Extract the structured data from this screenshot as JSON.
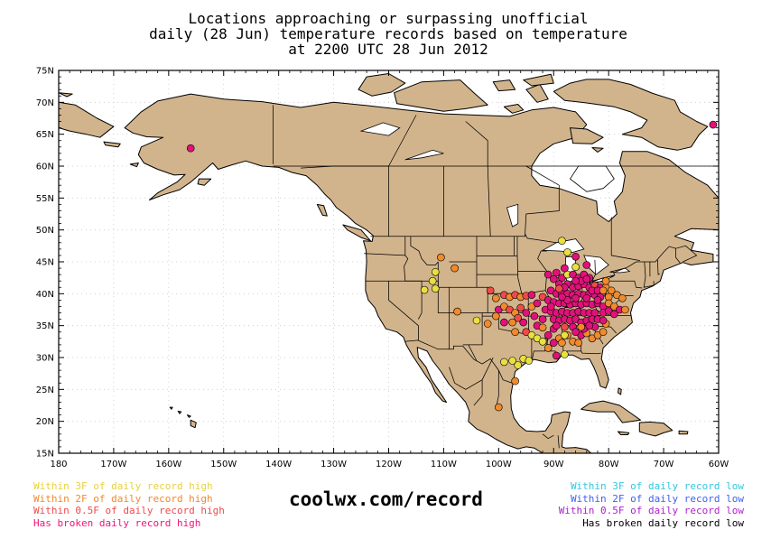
{
  "title": {
    "line1": "Locations approaching or surpassing unofficial",
    "line2": "daily (28 Jun) temperature records based on temperature",
    "line3": "at 2200 UTC 28 Jun 2012"
  },
  "axes": {
    "lat_labels": [
      "75N",
      "70N",
      "65N",
      "60N",
      "55N",
      "50N",
      "45N",
      "40N",
      "35N",
      "30N",
      "25N",
      "20N",
      "15N"
    ],
    "lat_values": [
      75,
      70,
      65,
      60,
      55,
      50,
      45,
      40,
      35,
      30,
      25,
      20,
      15
    ],
    "lon_labels": [
      "180",
      "170W",
      "160W",
      "150W",
      "140W",
      "130W",
      "120W",
      "110W",
      "100W",
      "90W",
      "80W",
      "70W",
      "60W"
    ],
    "lon_values": [
      -180,
      -170,
      -160,
      -150,
      -140,
      -130,
      -120,
      -110,
      -100,
      -90,
      -80,
      -70,
      -60
    ],
    "lon_range": [
      -180,
      -60
    ],
    "lat_range": [
      15,
      75
    ]
  },
  "colors": {
    "land": "#d2b48c",
    "water": "#ffffff",
    "yellow": "#e8e040",
    "orange": "#f08a2c",
    "red": "#f04a4a",
    "magenta": "#e0127a",
    "cyan": "#30c8e0",
    "blue": "#4060f0",
    "purple": "#b020d0",
    "black": "#000000"
  },
  "legend_left": [
    {
      "text": "Within 3F of daily record high",
      "color": "#e8d040"
    },
    {
      "text": "Within 2F of daily record high",
      "color": "#f08a2c"
    },
    {
      "text": "Within 0.5F of daily record high",
      "color": "#f04a4a"
    },
    {
      "text": "Has broken daily record high",
      "color": "#f0127a"
    }
  ],
  "legend_right": [
    {
      "text": "Within 3F of daily record low",
      "color": "#30c8e0"
    },
    {
      "text": "Within 2F of daily record low",
      "color": "#4060f0"
    },
    {
      "text": "Within 0.5F of daily record low",
      "color": "#b020d0"
    },
    {
      "text": "Has broken daily record low",
      "color": "#000000"
    }
  ],
  "site": "coolwx.com/record",
  "stations": [
    {
      "lon": -156.0,
      "lat": 62.8,
      "cat": "magenta"
    },
    {
      "lon": -61.0,
      "lat": 66.5,
      "cat": "magenta"
    },
    {
      "lon": -88.5,
      "lat": 48.3,
      "cat": "yellow"
    },
    {
      "lon": -87.5,
      "lat": 46.5,
      "cat": "yellow"
    },
    {
      "lon": -86.0,
      "lat": 45.8,
      "cat": "magenta"
    },
    {
      "lon": -110.5,
      "lat": 45.7,
      "cat": "orange"
    },
    {
      "lon": -108.0,
      "lat": 44.0,
      "cat": "orange"
    },
    {
      "lon": -111.5,
      "lat": 43.4,
      "cat": "yellow"
    },
    {
      "lon": -112.0,
      "lat": 42.0,
      "cat": "yellow"
    },
    {
      "lon": -113.5,
      "lat": 40.6,
      "cat": "yellow"
    },
    {
      "lon": -111.5,
      "lat": 40.8,
      "cat": "yellow"
    },
    {
      "lon": -107.5,
      "lat": 37.2,
      "cat": "orange"
    },
    {
      "lon": -104.0,
      "lat": 35.8,
      "cat": "yellow"
    },
    {
      "lon": -101.5,
      "lat": 40.5,
      "cat": "red"
    },
    {
      "lon": -100.5,
      "lat": 39.3,
      "cat": "orange"
    },
    {
      "lon": -99.0,
      "lat": 39.8,
      "cat": "red"
    },
    {
      "lon": -98.0,
      "lat": 39.5,
      "cat": "orange"
    },
    {
      "lon": -97.0,
      "lat": 39.8,
      "cat": "red"
    },
    {
      "lon": -96.0,
      "lat": 39.5,
      "cat": "orange"
    },
    {
      "lon": -95.0,
      "lat": 39.7,
      "cat": "red"
    },
    {
      "lon": -94.0,
      "lat": 39.8,
      "cat": "magenta"
    },
    {
      "lon": -100.0,
      "lat": 37.5,
      "cat": "magenta"
    },
    {
      "lon": -99.0,
      "lat": 38.0,
      "cat": "orange"
    },
    {
      "lon": -98.0,
      "lat": 37.5,
      "cat": "red"
    },
    {
      "lon": -97.0,
      "lat": 37.0,
      "cat": "orange"
    },
    {
      "lon": -96.0,
      "lat": 37.8,
      "cat": "red"
    },
    {
      "lon": -95.0,
      "lat": 37.0,
      "cat": "magenta"
    },
    {
      "lon": -94.0,
      "lat": 38.0,
      "cat": "orange"
    },
    {
      "lon": -93.0,
      "lat": 38.5,
      "cat": "magenta"
    },
    {
      "lon": -100.5,
      "lat": 36.5,
      "cat": "orange"
    },
    {
      "lon": -99.0,
      "lat": 35.5,
      "cat": "magenta"
    },
    {
      "lon": -97.5,
      "lat": 35.5,
      "cat": "orange"
    },
    {
      "lon": -96.5,
      "lat": 36.2,
      "cat": "red"
    },
    {
      "lon": -95.5,
      "lat": 35.5,
      "cat": "magenta"
    },
    {
      "lon": -97.0,
      "lat": 34.0,
      "cat": "orange"
    },
    {
      "lon": -95.0,
      "lat": 34.0,
      "cat": "red"
    },
    {
      "lon": -102.0,
      "lat": 35.3,
      "cat": "orange"
    },
    {
      "lon": -93.0,
      "lat": 35.0,
      "cat": "magenta"
    },
    {
      "lon": -92.0,
      "lat": 34.7,
      "cat": "orange"
    },
    {
      "lon": -94.0,
      "lat": 33.5,
      "cat": "yellow"
    },
    {
      "lon": -93.0,
      "lat": 33.0,
      "cat": "yellow"
    },
    {
      "lon": -92.0,
      "lat": 32.5,
      "cat": "yellow"
    },
    {
      "lon": -91.0,
      "lat": 33.5,
      "cat": "magenta"
    },
    {
      "lon": -90.0,
      "lat": 34.5,
      "cat": "magenta"
    },
    {
      "lon": -89.0,
      "lat": 33.0,
      "cat": "orange"
    },
    {
      "lon": -88.5,
      "lat": 32.3,
      "cat": "orange"
    },
    {
      "lon": -87.5,
      "lat": 33.5,
      "cat": "orange"
    },
    {
      "lon": -86.5,
      "lat": 32.5,
      "cat": "orange"
    },
    {
      "lon": -85.0,
      "lat": 33.5,
      "cat": "magenta"
    },
    {
      "lon": -84.0,
      "lat": 33.8,
      "cat": "orange"
    },
    {
      "lon": -83.0,
      "lat": 33.0,
      "cat": "orange"
    },
    {
      "lon": -82.0,
      "lat": 33.5,
      "cat": "orange"
    },
    {
      "lon": -81.0,
      "lat": 34.0,
      "cat": "orange"
    },
    {
      "lon": -85.5,
      "lat": 32.3,
      "cat": "orange"
    },
    {
      "lon": -84.5,
      "lat": 34.5,
      "cat": "magenta"
    },
    {
      "lon": -82.5,
      "lat": 34.8,
      "cat": "magenta"
    },
    {
      "lon": -80.5,
      "lat": 35.3,
      "cat": "orange"
    },
    {
      "lon": -97.5,
      "lat": 29.5,
      "cat": "yellow"
    },
    {
      "lon": -96.5,
      "lat": 28.8,
      "cat": "yellow"
    },
    {
      "lon": -95.5,
      "lat": 29.8,
      "cat": "yellow"
    },
    {
      "lon": -94.5,
      "lat": 29.5,
      "cat": "yellow"
    },
    {
      "lon": -99.0,
      "lat": 29.3,
      "cat": "yellow"
    },
    {
      "lon": -97.0,
      "lat": 26.3,
      "cat": "orange"
    },
    {
      "lon": -100.0,
      "lat": 22.2,
      "cat": "orange"
    },
    {
      "lon": -89.5,
      "lat": 30.3,
      "cat": "magenta"
    },
    {
      "lon": -88.0,
      "lat": 30.5,
      "cat": "yellow"
    },
    {
      "lon": -91.0,
      "lat": 43.0,
      "cat": "magenta"
    },
    {
      "lon": -90.0,
      "lat": 42.3,
      "cat": "magenta"
    },
    {
      "lon": -88.5,
      "lat": 42.5,
      "cat": "magenta"
    },
    {
      "lon": -87.5,
      "lat": 43.0,
      "cat": "yellow"
    },
    {
      "lon": -86.5,
      "lat": 43.0,
      "cat": "magenta"
    },
    {
      "lon": -85.5,
      "lat": 42.5,
      "cat": "magenta"
    },
    {
      "lon": -84.5,
      "lat": 43.0,
      "cat": "magenta"
    },
    {
      "lon": -83.5,
      "lat": 42.5,
      "cat": "magenta"
    },
    {
      "lon": -89.0,
      "lat": 41.5,
      "cat": "magenta"
    },
    {
      "lon": -87.5,
      "lat": 41.5,
      "cat": "magenta"
    },
    {
      "lon": -86.5,
      "lat": 41.0,
      "cat": "magenta"
    },
    {
      "lon": -85.5,
      "lat": 41.2,
      "cat": "magenta"
    },
    {
      "lon": -84.5,
      "lat": 41.5,
      "cat": "magenta"
    },
    {
      "lon": -83.5,
      "lat": 41.0,
      "cat": "magenta"
    },
    {
      "lon": -82.5,
      "lat": 41.3,
      "cat": "red"
    },
    {
      "lon": -81.5,
      "lat": 41.0,
      "cat": "magenta"
    },
    {
      "lon": -80.5,
      "lat": 41.0,
      "cat": "orange"
    },
    {
      "lon": -79.5,
      "lat": 40.5,
      "cat": "orange"
    },
    {
      "lon": -78.5,
      "lat": 39.8,
      "cat": "orange"
    },
    {
      "lon": -77.5,
      "lat": 39.3,
      "cat": "orange"
    },
    {
      "lon": -80.0,
      "lat": 39.5,
      "cat": "orange"
    },
    {
      "lon": -80.5,
      "lat": 42.0,
      "cat": "orange"
    },
    {
      "lon": -90.5,
      "lat": 40.5,
      "cat": "magenta"
    },
    {
      "lon": -89.5,
      "lat": 40.0,
      "cat": "magenta"
    },
    {
      "lon": -88.5,
      "lat": 40.0,
      "cat": "magenta"
    },
    {
      "lon": -87.5,
      "lat": 40.0,
      "cat": "magenta"
    },
    {
      "lon": -86.5,
      "lat": 39.8,
      "cat": "magenta"
    },
    {
      "lon": -85.5,
      "lat": 40.0,
      "cat": "magenta"
    },
    {
      "lon": -84.5,
      "lat": 39.8,
      "cat": "magenta"
    },
    {
      "lon": -83.5,
      "lat": 40.0,
      "cat": "magenta"
    },
    {
      "lon": -82.5,
      "lat": 39.8,
      "cat": "magenta"
    },
    {
      "lon": -81.5,
      "lat": 39.5,
      "cat": "magenta"
    },
    {
      "lon": -92.0,
      "lat": 39.5,
      "cat": "red"
    },
    {
      "lon": -91.0,
      "lat": 39.0,
      "cat": "magenta"
    },
    {
      "lon": -90.0,
      "lat": 38.7,
      "cat": "magenta"
    },
    {
      "lon": -89.0,
      "lat": 38.5,
      "cat": "magenta"
    },
    {
      "lon": -88.0,
      "lat": 38.5,
      "cat": "magenta"
    },
    {
      "lon": -87.0,
      "lat": 38.3,
      "cat": "magenta"
    },
    {
      "lon": -86.0,
      "lat": 38.5,
      "cat": "magenta"
    },
    {
      "lon": -85.0,
      "lat": 38.3,
      "cat": "magenta"
    },
    {
      "lon": -84.0,
      "lat": 38.5,
      "cat": "magenta"
    },
    {
      "lon": -83.0,
      "lat": 38.3,
      "cat": "magenta"
    },
    {
      "lon": -82.0,
      "lat": 38.5,
      "cat": "magenta"
    },
    {
      "lon": -81.0,
      "lat": 38.0,
      "cat": "magenta"
    },
    {
      "lon": -80.0,
      "lat": 38.5,
      "cat": "orange"
    },
    {
      "lon": -79.0,
      "lat": 38.0,
      "cat": "orange"
    },
    {
      "lon": -78.0,
      "lat": 37.5,
      "cat": "magenta"
    },
    {
      "lon": -77.0,
      "lat": 37.5,
      "cat": "orange"
    },
    {
      "lon": -91.5,
      "lat": 37.5,
      "cat": "magenta"
    },
    {
      "lon": -90.5,
      "lat": 37.2,
      "cat": "magenta"
    },
    {
      "lon": -89.5,
      "lat": 37.0,
      "cat": "magenta"
    },
    {
      "lon": -88.5,
      "lat": 37.2,
      "cat": "magenta"
    },
    {
      "lon": -87.5,
      "lat": 37.0,
      "cat": "magenta"
    },
    {
      "lon": -86.5,
      "lat": 37.0,
      "cat": "magenta"
    },
    {
      "lon": -85.5,
      "lat": 37.2,
      "cat": "magenta"
    },
    {
      "lon": -84.5,
      "lat": 37.0,
      "cat": "magenta"
    },
    {
      "lon": -83.5,
      "lat": 37.0,
      "cat": "magenta"
    },
    {
      "lon": -82.5,
      "lat": 37.0,
      "cat": "magenta"
    },
    {
      "lon": -81.0,
      "lat": 37.0,
      "cat": "magenta"
    },
    {
      "lon": -80.0,
      "lat": 37.3,
      "cat": "magenta"
    },
    {
      "lon": -79.0,
      "lat": 36.8,
      "cat": "magenta"
    },
    {
      "lon": -90.0,
      "lat": 36.0,
      "cat": "magenta"
    },
    {
      "lon": -89.0,
      "lat": 35.8,
      "cat": "magenta"
    },
    {
      "lon": -88.0,
      "lat": 36.0,
      "cat": "magenta"
    },
    {
      "lon": -87.0,
      "lat": 35.8,
      "cat": "magenta"
    },
    {
      "lon": -86.0,
      "lat": 36.0,
      "cat": "magenta"
    },
    {
      "lon": -85.0,
      "lat": 35.5,
      "cat": "magenta"
    },
    {
      "lon": -84.0,
      "lat": 35.8,
      "cat": "magenta"
    },
    {
      "lon": -83.0,
      "lat": 36.0,
      "cat": "magenta"
    },
    {
      "lon": -82.0,
      "lat": 36.0,
      "cat": "magenta"
    },
    {
      "lon": -81.0,
      "lat": 35.8,
      "cat": "magenta"
    },
    {
      "lon": -89.5,
      "lat": 35.0,
      "cat": "magenta"
    },
    {
      "lon": -88.0,
      "lat": 34.8,
      "cat": "red"
    },
    {
      "lon": -86.5,
      "lat": 34.8,
      "cat": "magenta"
    },
    {
      "lon": -85.0,
      "lat": 34.8,
      "cat": "orange"
    },
    {
      "lon": -83.5,
      "lat": 35.0,
      "cat": "magenta"
    },
    {
      "lon": -87.5,
      "lat": 39.0,
      "cat": "magenta"
    },
    {
      "lon": -86.0,
      "lat": 39.3,
      "cat": "magenta"
    },
    {
      "lon": -84.0,
      "lat": 39.3,
      "cat": "magenta"
    },
    {
      "lon": -82.0,
      "lat": 39.0,
      "cat": "magenta"
    },
    {
      "lon": -88.5,
      "lat": 39.5,
      "cat": "magenta"
    },
    {
      "lon": -90.5,
      "lat": 38.0,
      "cat": "magenta"
    },
    {
      "lon": -85.0,
      "lat": 42.0,
      "cat": "magenta"
    },
    {
      "lon": -86.0,
      "lat": 42.0,
      "cat": "magenta"
    },
    {
      "lon": -84.0,
      "lat": 42.3,
      "cat": "magenta"
    },
    {
      "lon": -83.0,
      "lat": 40.5,
      "cat": "magenta"
    },
    {
      "lon": -82.0,
      "lat": 40.5,
      "cat": "magenta"
    },
    {
      "lon": -81.0,
      "lat": 40.5,
      "cat": "orange"
    },
    {
      "lon": -88.0,
      "lat": 41.0,
      "cat": "magenta"
    },
    {
      "lon": -89.0,
      "lat": 40.8,
      "cat": "red"
    },
    {
      "lon": -89.5,
      "lat": 43.3,
      "cat": "magenta"
    },
    {
      "lon": -88.0,
      "lat": 44.0,
      "cat": "magenta"
    },
    {
      "lon": -86.0,
      "lat": 44.2,
      "cat": "yellow"
    },
    {
      "lon": -84.0,
      "lat": 44.5,
      "cat": "magenta"
    },
    {
      "lon": -92.0,
      "lat": 36.0,
      "cat": "magenta"
    },
    {
      "lon": -93.5,
      "lat": 36.5,
      "cat": "magenta"
    },
    {
      "lon": -86.0,
      "lat": 34.0,
      "cat": "magenta"
    },
    {
      "lon": -88.0,
      "lat": 33.5,
      "cat": "yellow"
    },
    {
      "lon": -90.0,
      "lat": 32.3,
      "cat": "magenta"
    },
    {
      "lon": -91.0,
      "lat": 31.5,
      "cat": "orange"
    }
  ]
}
